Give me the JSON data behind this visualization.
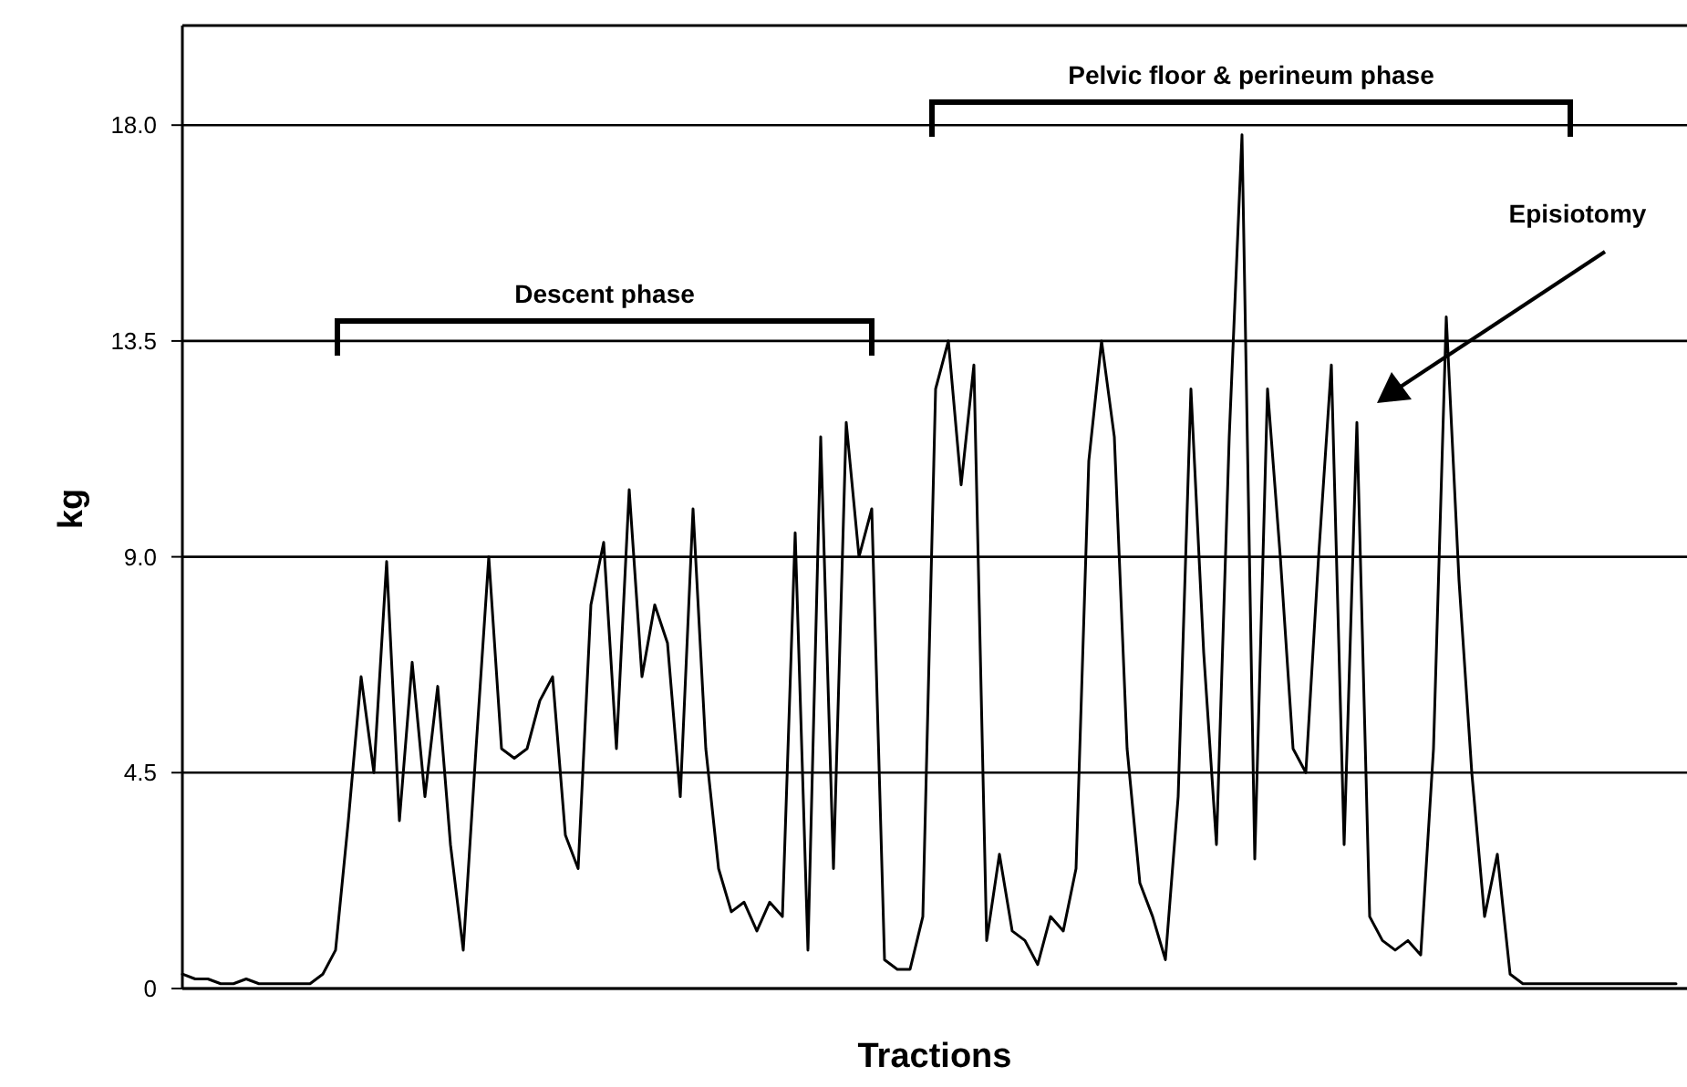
{
  "chart_data": {
    "type": "line",
    "xlabel": "Tractions",
    "ylabel": "kg",
    "categories": [
      null,
      null,
      null,
      null,
      null,
      null,
      null,
      null,
      null,
      null,
      null,
      null,
      null,
      null,
      null,
      null,
      null,
      null,
      null,
      null,
      null,
      null,
      null,
      null,
      null,
      null,
      null,
      null,
      null,
      null,
      null,
      null,
      null,
      null,
      null,
      null,
      null,
      null,
      null,
      null,
      null,
      null,
      null,
      null,
      null,
      null,
      null,
      null,
      null,
      null,
      null,
      null,
      null,
      null,
      null,
      null,
      null,
      null,
      null,
      null,
      null,
      null,
      null,
      null,
      null,
      null,
      null,
      null,
      null,
      null,
      null,
      null,
      null,
      null,
      null,
      null,
      null,
      null,
      null,
      null,
      null,
      null,
      null,
      null,
      null,
      null,
      null,
      null,
      null,
      null,
      null,
      null,
      null,
      null,
      null,
      null,
      null,
      null,
      null,
      null,
      null,
      null,
      null,
      null,
      null,
      null,
      null,
      null,
      null,
      null,
      null,
      null,
      null,
      null,
      null,
      null,
      null,
      null
    ],
    "series": [
      {
        "color": "#000000",
        "values": [
          0.3,
          0.2,
          0.2,
          0.1,
          0.1,
          0.2,
          0.1,
          0.1,
          0.1,
          0.1,
          0.1,
          0.3,
          0.8,
          3.5,
          6.5,
          4.5,
          8.9,
          3.5,
          6.8,
          4.0,
          6.3,
          3.0,
          0.8,
          5.0,
          9.0,
          5.0,
          4.8,
          5.0,
          6.0,
          6.5,
          3.2,
          2.5,
          8.0,
          9.3,
          5.0,
          10.4,
          6.5,
          8.0,
          7.2,
          4.0,
          10.0,
          5.0,
          2.5,
          1.6,
          1.8,
          1.2,
          1.8,
          1.5,
          9.5,
          0.8,
          11.5,
          2.5,
          11.8,
          9.0,
          10.0,
          0.6,
          0.4,
          0.4,
          1.5,
          12.5,
          13.5,
          10.5,
          13.0,
          1.0,
          2.8,
          1.2,
          1.0,
          0.5,
          1.5,
          1.2,
          2.5,
          11.0,
          13.5,
          11.5,
          5.0,
          2.2,
          1.5,
          0.6,
          4.0,
          12.5,
          7.0,
          3.0,
          11.5,
          17.8,
          2.7,
          12.5,
          9.0,
          5.0,
          4.5,
          9.0,
          13.0,
          3.0,
          11.8,
          1.5,
          1.0,
          0.8,
          1.0,
          0.7,
          5.0,
          14.0,
          8.5,
          4.5,
          1.5,
          2.8,
          0.3,
          0.1,
          0.1,
          0.1,
          0.1,
          0.1,
          0.1,
          0.1,
          0.1,
          0.1,
          0.1,
          0.1,
          0.1,
          0.1
        ]
      }
    ],
    "ylim": [
      0,
      20
    ],
    "yticks": [
      0,
      4.5,
      {
        "value": 9,
        "label": "9.0"
      },
      13.5,
      {
        "value": 18,
        "label": "18.0"
      }
    ],
    "grid": "y",
    "marker": "none",
    "line_style": "solid",
    "annotations": [
      "Descent phase",
      "Pelvic floor & perineum phase",
      "Episiotomy"
    ]
  }
}
